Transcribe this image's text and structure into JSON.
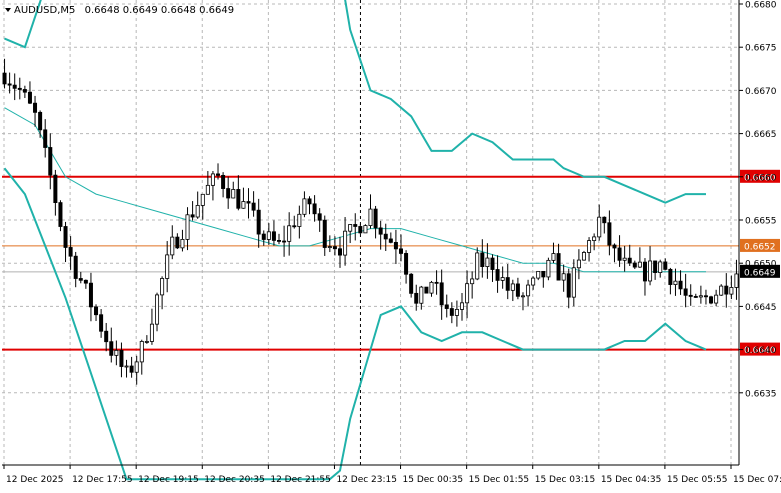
{
  "header": {
    "symbol": "AUDUSD,M5",
    "ohlc": "0.6648 0.6649 0.6648 0.6649"
  },
  "colors": {
    "background": "#ffffff",
    "grid": "#b8b8b8",
    "candle": "#000000",
    "bollinger": "#20b2aa",
    "support_resistance": "#e00000",
    "pivot": "#e07020",
    "current_price_bg": "#000000",
    "current_price_text": "#ffffff"
  },
  "chart_data": {
    "type": "candlestick",
    "symbol": "AUDUSD",
    "timeframe": "M5",
    "ylim": [
      0.663,
      0.668
    ],
    "y_ticks": [
      "0.6680",
      "0.6675",
      "0.6670",
      "0.6665",
      "0.6660",
      "0.6655",
      "0.6650",
      "0.6645",
      "0.6640",
      "0.6635"
    ],
    "x_ticks": [
      "12 Dec 2025",
      "12 Dec 17:55",
      "12 Dec 19:15",
      "12 Dec 20:35",
      "12 Dec 21:55",
      "12 Dec 23:15",
      "15 Dec 00:35",
      "15 Dec 01:55",
      "15 Dec 03:15",
      "15 Dec 04:35",
      "15 Dec 05:55",
      "15 Dec 07:15"
    ],
    "session_separator_label": "12 Dec 23:15",
    "horizontal_lines": [
      {
        "label": "0.6660",
        "value": 0.666,
        "style": "resistance"
      },
      {
        "label": "0.6652",
        "value": 0.6652,
        "style": "pivot"
      },
      {
        "label": "0.6640",
        "value": 0.664,
        "style": "support"
      }
    ],
    "current_price": {
      "label": "0.6649",
      "value": 0.6649
    },
    "close_path": [
      [
        0,
        0.6672
      ],
      [
        3,
        0.667
      ],
      [
        6,
        0.6667
      ],
      [
        9,
        0.666
      ],
      [
        12,
        0.6652
      ],
      [
        15,
        0.6648
      ],
      [
        18,
        0.6644
      ],
      [
        21,
        0.664
      ],
      [
        24,
        0.6637
      ],
      [
        27,
        0.664
      ],
      [
        30,
        0.6646
      ],
      [
        33,
        0.6652
      ],
      [
        36,
        0.6655
      ],
      [
        39,
        0.6658
      ],
      [
        42,
        0.666
      ],
      [
        45,
        0.6658
      ],
      [
        48,
        0.6656
      ],
      [
        51,
        0.6653
      ],
      [
        54,
        0.6652
      ],
      [
        57,
        0.6655
      ],
      [
        60,
        0.6657
      ],
      [
        63,
        0.6653
      ],
      [
        66,
        0.6652
      ],
      [
        69,
        0.6654
      ],
      [
        72,
        0.6656
      ],
      [
        75,
        0.6653
      ],
      [
        78,
        0.6652
      ],
      [
        81,
        0.6645
      ],
      [
        84,
        0.6648
      ],
      [
        87,
        0.6644
      ],
      [
        90,
        0.6645
      ],
      [
        93,
        0.665
      ],
      [
        96,
        0.665
      ],
      [
        99,
        0.6647
      ],
      [
        102,
        0.6646
      ],
      [
        105,
        0.6648
      ],
      [
        108,
        0.665
      ],
      [
        111,
        0.6647
      ],
      [
        114,
        0.6651
      ],
      [
        117,
        0.6655
      ],
      [
        120,
        0.6651
      ],
      [
        123,
        0.6649
      ],
      [
        126,
        0.6649
      ],
      [
        129,
        0.665
      ],
      [
        132,
        0.6648
      ],
      [
        135,
        0.6645
      ],
      [
        138,
        0.6646
      ],
      [
        141,
        0.6647
      ],
      [
        144,
        0.6649
      ]
    ],
    "bollinger": {
      "upper": [
        [
          0,
          0.6676
        ],
        [
          4,
          0.6675
        ],
        [
          8,
          0.6682
        ],
        [
          12,
          0.6684
        ],
        [
          16,
          0.6684
        ],
        [
          20,
          0.6684
        ],
        [
          24,
          0.6684
        ],
        [
          28,
          0.6684
        ],
        [
          32,
          0.6684
        ],
        [
          36,
          0.6684
        ],
        [
          40,
          0.6684
        ],
        [
          44,
          0.6684
        ],
        [
          48,
          0.6684
        ],
        [
          52,
          0.6684
        ],
        [
          56,
          0.6684
        ],
        [
          60,
          0.6684
        ],
        [
          64,
          0.6684
        ],
        [
          66,
          0.6684
        ],
        [
          68,
          0.6677
        ],
        [
          72,
          0.667
        ],
        [
          76,
          0.6669
        ],
        [
          80,
          0.6667
        ],
        [
          84,
          0.6663
        ],
        [
          88,
          0.6663
        ],
        [
          92,
          0.6665
        ],
        [
          96,
          0.6664
        ],
        [
          100,
          0.6662
        ],
        [
          104,
          0.6662
        ],
        [
          108,
          0.6662
        ],
        [
          110,
          0.6661
        ],
        [
          114,
          0.666
        ],
        [
          118,
          0.666
        ],
        [
          122,
          0.6659
        ],
        [
          126,
          0.6658
        ],
        [
          130,
          0.6657
        ],
        [
          134,
          0.6658
        ],
        [
          138,
          0.6658
        ]
      ],
      "middle": [
        [
          0,
          0.6668
        ],
        [
          6,
          0.6666
        ],
        [
          12,
          0.666
        ],
        [
          18,
          0.6658
        ],
        [
          24,
          0.6657
        ],
        [
          30,
          0.6656
        ],
        [
          36,
          0.6655
        ],
        [
          42,
          0.6654
        ],
        [
          48,
          0.6653
        ],
        [
          54,
          0.6652
        ],
        [
          60,
          0.6652
        ],
        [
          66,
          0.6653
        ],
        [
          72,
          0.6654
        ],
        [
          78,
          0.6654
        ],
        [
          84,
          0.6653
        ],
        [
          90,
          0.6652
        ],
        [
          96,
          0.6651
        ],
        [
          102,
          0.665
        ],
        [
          108,
          0.665
        ],
        [
          114,
          0.6649
        ],
        [
          120,
          0.6649
        ],
        [
          126,
          0.6649
        ],
        [
          132,
          0.6649
        ],
        [
          138,
          0.6649
        ]
      ],
      "lower": [
        [
          0,
          0.6661
        ],
        [
          4,
          0.6658
        ],
        [
          8,
          0.6652
        ],
        [
          12,
          0.6646
        ],
        [
          16,
          0.6639
        ],
        [
          20,
          0.6632
        ],
        [
          24,
          0.6625
        ],
        [
          28,
          0.6625
        ],
        [
          32,
          0.6625
        ],
        [
          36,
          0.6625
        ],
        [
          40,
          0.6625
        ],
        [
          44,
          0.6625
        ],
        [
          48,
          0.6625
        ],
        [
          52,
          0.6625
        ],
        [
          56,
          0.6625
        ],
        [
          60,
          0.6625
        ],
        [
          64,
          0.6625
        ],
        [
          66,
          0.6626
        ],
        [
          68,
          0.6632
        ],
        [
          71,
          0.6638
        ],
        [
          74,
          0.6644
        ],
        [
          78,
          0.6645
        ],
        [
          82,
          0.6642
        ],
        [
          86,
          0.6641
        ],
        [
          90,
          0.6642
        ],
        [
          94,
          0.6642
        ],
        [
          98,
          0.6641
        ],
        [
          102,
          0.664
        ],
        [
          106,
          0.664
        ],
        [
          110,
          0.664
        ],
        [
          114,
          0.664
        ],
        [
          118,
          0.664
        ],
        [
          122,
          0.6641
        ],
        [
          126,
          0.6641
        ],
        [
          130,
          0.6643
        ],
        [
          134,
          0.6641
        ],
        [
          138,
          0.664
        ]
      ]
    }
  }
}
